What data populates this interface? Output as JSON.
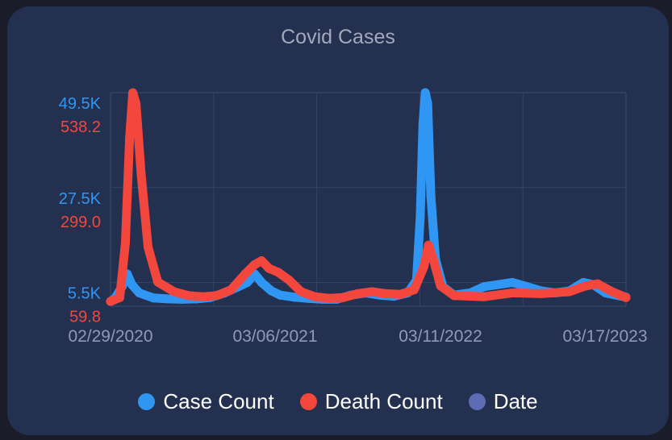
{
  "chart_data": {
    "type": "line",
    "title": "Covid Cases",
    "x_start": "2020-02-29",
    "x_end": "2023-03-17",
    "x_ticks": [
      "02/29/2020",
      "03/06/2021",
      "03/11/2022",
      "03/17/2023"
    ],
    "y_axes": [
      {
        "series": "Case Count",
        "color": "#2f96f3",
        "ticks": [
          "49.5K",
          "27.5K",
          "5.5K"
        ],
        "tick_values": [
          49500,
          27500,
          5500
        ],
        "range": [
          0,
          49500
        ]
      },
      {
        "series": "Death Count",
        "color": "#f3463d",
        "ticks": [
          "538.2",
          "299.0",
          "59.8"
        ],
        "tick_values": [
          538.2,
          299.0,
          59.8
        ],
        "range": [
          0,
          538.2
        ]
      }
    ],
    "series": [
      {
        "name": "Case Count",
        "color": "#2f96f3",
        "points": [
          [
            "2020-02-29",
            0
          ],
          [
            "2020-03-10",
            800
          ],
          [
            "2020-03-25",
            3500
          ],
          [
            "2020-04-05",
            6500
          ],
          [
            "2020-04-15",
            4000
          ],
          [
            "2020-05-01",
            2000
          ],
          [
            "2020-06-01",
            800
          ],
          [
            "2020-07-01",
            600
          ],
          [
            "2020-08-01",
            500
          ],
          [
            "2020-09-01",
            600
          ],
          [
            "2020-10-01",
            900
          ],
          [
            "2020-11-01",
            2000
          ],
          [
            "2020-12-01",
            3500
          ],
          [
            "2020-12-20",
            4500
          ],
          [
            "2021-01-05",
            6500
          ],
          [
            "2021-01-20",
            4500
          ],
          [
            "2021-02-10",
            2500
          ],
          [
            "2021-03-01",
            1500
          ],
          [
            "2021-04-01",
            1000
          ],
          [
            "2021-05-01",
            700
          ],
          [
            "2021-06-01",
            500
          ],
          [
            "2021-07-01",
            500
          ],
          [
            "2021-08-01",
            1500
          ],
          [
            "2021-09-01",
            2000
          ],
          [
            "2021-10-01",
            1500
          ],
          [
            "2021-11-01",
            1200
          ],
          [
            "2021-12-01",
            2000
          ],
          [
            "2021-12-20",
            5000
          ],
          [
            "2021-12-28",
            20000
          ],
          [
            "2022-01-03",
            42000
          ],
          [
            "2022-01-08",
            49500
          ],
          [
            "2022-01-13",
            47000
          ],
          [
            "2022-01-20",
            25000
          ],
          [
            "2022-01-30",
            10000
          ],
          [
            "2022-02-15",
            3500
          ],
          [
            "2022-03-11",
            1500
          ],
          [
            "2022-04-15",
            2000
          ],
          [
            "2022-05-15",
            3500
          ],
          [
            "2022-06-15",
            4000
          ],
          [
            "2022-07-15",
            4500
          ],
          [
            "2022-08-15",
            3500
          ],
          [
            "2022-09-15",
            2500
          ],
          [
            "2022-10-15",
            2000
          ],
          [
            "2022-11-15",
            2500
          ],
          [
            "2022-12-15",
            4500
          ],
          [
            "2023-01-05",
            4000
          ],
          [
            "2023-02-01",
            2000
          ],
          [
            "2023-03-17",
            1000
          ]
        ]
      },
      {
        "name": "Death Count",
        "color": "#f3463d",
        "points": [
          [
            "2020-02-29",
            0
          ],
          [
            "2020-03-20",
            10
          ],
          [
            "2020-04-01",
            150
          ],
          [
            "2020-04-10",
            420
          ],
          [
            "2020-04-17",
            538
          ],
          [
            "2020-04-24",
            510
          ],
          [
            "2020-05-05",
            330
          ],
          [
            "2020-05-20",
            140
          ],
          [
            "2020-06-10",
            50
          ],
          [
            "2020-07-15",
            25
          ],
          [
            "2020-08-15",
            15
          ],
          [
            "2020-09-15",
            12
          ],
          [
            "2020-10-15",
            15
          ],
          [
            "2020-11-15",
            30
          ],
          [
            "2020-12-15",
            70
          ],
          [
            "2021-01-05",
            95
          ],
          [
            "2021-01-20",
            105
          ],
          [
            "2021-02-05",
            85
          ],
          [
            "2021-02-25",
            75
          ],
          [
            "2021-03-20",
            55
          ],
          [
            "2021-04-15",
            25
          ],
          [
            "2021-05-15",
            12
          ],
          [
            "2021-06-15",
            8
          ],
          [
            "2021-07-15",
            10
          ],
          [
            "2021-08-15",
            20
          ],
          [
            "2021-09-15",
            25
          ],
          [
            "2021-10-15",
            20
          ],
          [
            "2021-11-15",
            18
          ],
          [
            "2021-12-15",
            30
          ],
          [
            "2022-01-05",
            90
          ],
          [
            "2022-01-15",
            145
          ],
          [
            "2022-01-25",
            110
          ],
          [
            "2022-02-10",
            40
          ],
          [
            "2022-03-11",
            15
          ],
          [
            "2022-05-15",
            12
          ],
          [
            "2022-07-15",
            22
          ],
          [
            "2022-09-15",
            20
          ],
          [
            "2022-11-15",
            25
          ],
          [
            "2022-12-20",
            40
          ],
          [
            "2023-01-15",
            45
          ],
          [
            "2023-02-15",
            25
          ],
          [
            "2023-03-17",
            10
          ]
        ]
      }
    ],
    "legend": [
      {
        "label": "Case Count",
        "color": "#2f96f3"
      },
      {
        "label": "Death Count",
        "color": "#f3463d"
      },
      {
        "label": "Date",
        "color": "#5e6cb8"
      }
    ],
    "legend_position": "bottom",
    "grid": true
  }
}
